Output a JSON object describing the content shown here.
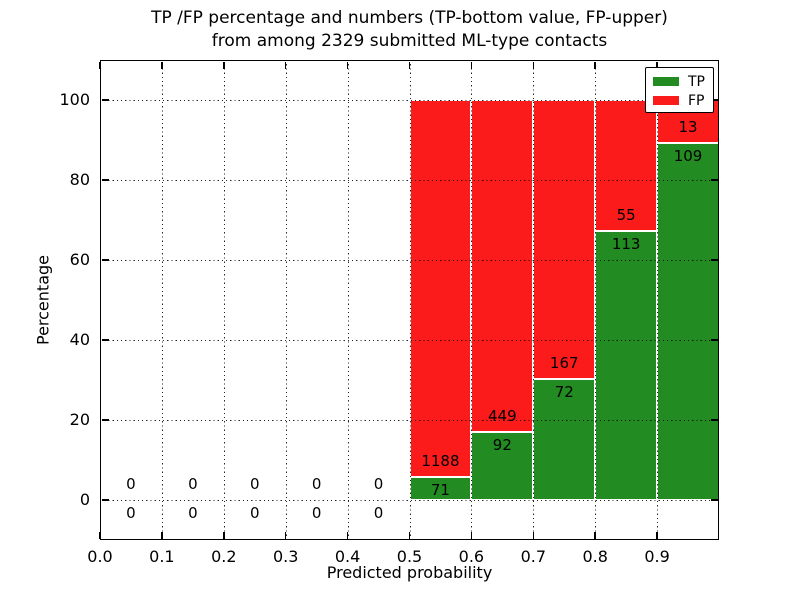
{
  "chart_data": {
    "type": "bar",
    "stacked": true,
    "title_lines": [
      "TP /FP percentage and numbers (TP-bottom value, FP-upper)",
      "from among 2329 submitted ML-type contacts"
    ],
    "xlabel": "Predicted probability",
    "ylabel": "Percentage",
    "total_submitted_contacts": 2329,
    "xlim": [
      0.0,
      1.0
    ],
    "ylim": [
      -10,
      110
    ],
    "xtick_values": [
      0.0,
      0.1,
      0.2,
      0.3,
      0.4,
      0.5,
      0.6,
      0.7,
      0.8,
      0.9
    ],
    "xtick_labels": [
      "0.0",
      "0.1",
      "0.2",
      "0.3",
      "0.4",
      "0.5",
      "0.6",
      "0.7",
      "0.8",
      "0.9"
    ],
    "ytick_values": [
      0,
      20,
      40,
      60,
      80,
      100
    ],
    "ytick_labels": [
      "0",
      "20",
      "40",
      "60",
      "80",
      "100"
    ],
    "grid": "dotted",
    "colors": {
      "tp": "#228b22",
      "fp": "#fb1b1b"
    },
    "legend_position": "upper right",
    "legend": [
      {
        "label": "TP",
        "color": "#228b22"
      },
      {
        "label": "FP",
        "color": "#fb1b1b"
      }
    ],
    "bins": [
      {
        "x0": 0.0,
        "x1": 0.1,
        "tp": 0,
        "fp": 0,
        "tp_pct": 0.0,
        "fp_pct": 0.0
      },
      {
        "x0": 0.1,
        "x1": 0.2,
        "tp": 0,
        "fp": 0,
        "tp_pct": 0.0,
        "fp_pct": 0.0
      },
      {
        "x0": 0.2,
        "x1": 0.3,
        "tp": 0,
        "fp": 0,
        "tp_pct": 0.0,
        "fp_pct": 0.0
      },
      {
        "x0": 0.3,
        "x1": 0.4,
        "tp": 0,
        "fp": 0,
        "tp_pct": 0.0,
        "fp_pct": 0.0
      },
      {
        "x0": 0.4,
        "x1": 0.5,
        "tp": 0,
        "fp": 0,
        "tp_pct": 0.0,
        "fp_pct": 0.0
      },
      {
        "x0": 0.5,
        "x1": 0.6,
        "tp": 71,
        "fp": 1188,
        "tp_pct": 5.6,
        "fp_pct": 94.4
      },
      {
        "x0": 0.6,
        "x1": 0.7,
        "tp": 92,
        "fp": 449,
        "tp_pct": 17.0,
        "fp_pct": 83.0
      },
      {
        "x0": 0.7,
        "x1": 0.8,
        "tp": 72,
        "fp": 167,
        "tp_pct": 30.1,
        "fp_pct": 69.9
      },
      {
        "x0": 0.8,
        "x1": 0.9,
        "tp": 113,
        "fp": 55,
        "tp_pct": 67.3,
        "fp_pct": 32.7
      },
      {
        "x0": 0.9,
        "x1": 1.0,
        "tp": 109,
        "fp": 13,
        "tp_pct": 89.3,
        "fp_pct": 10.7
      }
    ]
  }
}
